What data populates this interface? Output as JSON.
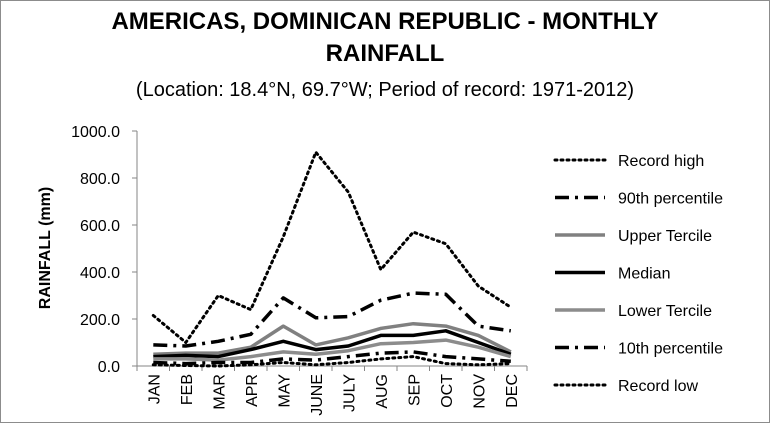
{
  "chart_data": {
    "type": "line",
    "title": "AMERICAS, DOMINICAN REPUBLIC - MONTHLY",
    "title_line2": "RAINFALL",
    "subtitle": "(Location: 18.4°N, 69.7°W; Period of record: 1971-2012)",
    "xlabel": "",
    "ylabel": "RAINFALL (mm)",
    "ylim": [
      0,
      1000
    ],
    "yticks": [
      "0.0",
      "200.0",
      "400.0",
      "600.0",
      "800.0",
      "1000.0"
    ],
    "categories": [
      "JAN",
      "FEB",
      "MAR",
      "APR",
      "MAY",
      "JUNE",
      "JULY",
      "AUG",
      "SEP",
      "OCT",
      "NOV",
      "DEC"
    ],
    "grid": false,
    "legend_position": "right",
    "series": [
      {
        "name": "Record high",
        "color": "#000000",
        "style": "dotted",
        "width": 3,
        "values": [
          215,
          100,
          300,
          240,
          550,
          910,
          740,
          410,
          570,
          520,
          340,
          250
        ]
      },
      {
        "name": "90th percentile",
        "color": "#000000",
        "style": "dashdot",
        "width": 3.5,
        "values": [
          90,
          85,
          105,
          135,
          290,
          205,
          210,
          280,
          310,
          305,
          170,
          150
        ]
      },
      {
        "name": "Upper Tercile",
        "color": "#808080",
        "style": "solid",
        "width": 3.5,
        "values": [
          50,
          55,
          55,
          80,
          170,
          90,
          120,
          160,
          180,
          170,
          130,
          60
        ]
      },
      {
        "name": "Median",
        "color": "#000000",
        "style": "solid",
        "width": 3.5,
        "values": [
          40,
          45,
          40,
          70,
          105,
          70,
          85,
          130,
          130,
          150,
          100,
          50
        ]
      },
      {
        "name": "Lower Tercile",
        "color": "#8c8c8c",
        "style": "solid",
        "width": 3.5,
        "values": [
          30,
          30,
          25,
          40,
          60,
          50,
          65,
          95,
          100,
          110,
          80,
          40
        ]
      },
      {
        "name": "10th percentile",
        "color": "#000000",
        "style": "dashdot",
        "width": 3.5,
        "values": [
          15,
          10,
          15,
          15,
          30,
          25,
          40,
          55,
          60,
          40,
          30,
          20
        ]
      },
      {
        "name": "Record low",
        "color": "#000000",
        "style": "dotted",
        "width": 3,
        "values": [
          5,
          2,
          0,
          5,
          15,
          5,
          15,
          30,
          40,
          10,
          5,
          10
        ]
      }
    ]
  }
}
